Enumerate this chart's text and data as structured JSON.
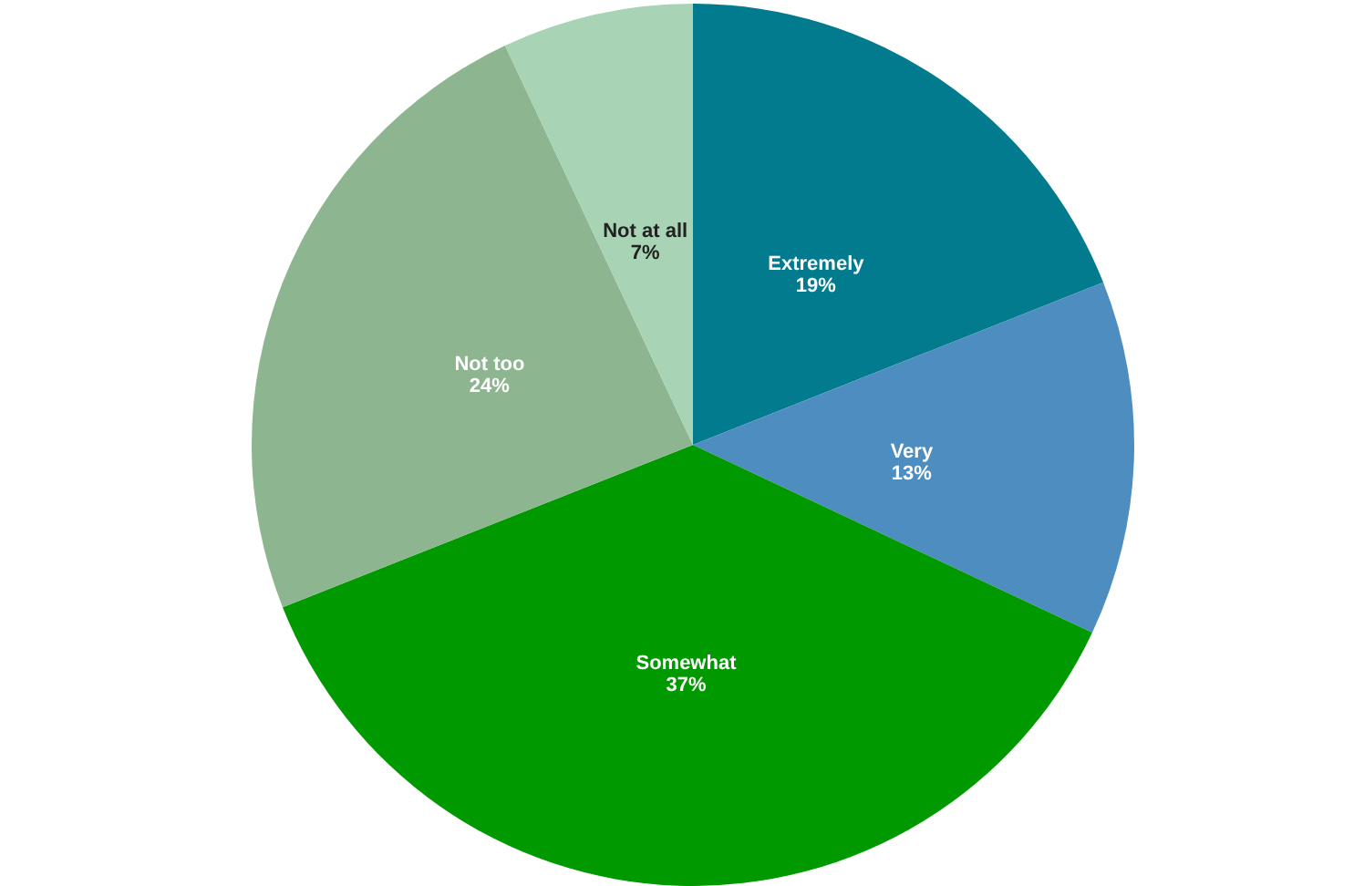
{
  "chart_data": {
    "type": "pie",
    "categories": [
      "Extremely",
      "Very",
      "Somewhat",
      "Not too",
      "Not at all"
    ],
    "values": [
      19,
      13,
      37,
      24,
      7
    ],
    "colors": [
      "#037b8f",
      "#4d8dbf",
      "#009900",
      "#8db590",
      "#a8d3b4"
    ],
    "value_labels": [
      "19%",
      "13%",
      "37%",
      "24%",
      "7%"
    ]
  }
}
